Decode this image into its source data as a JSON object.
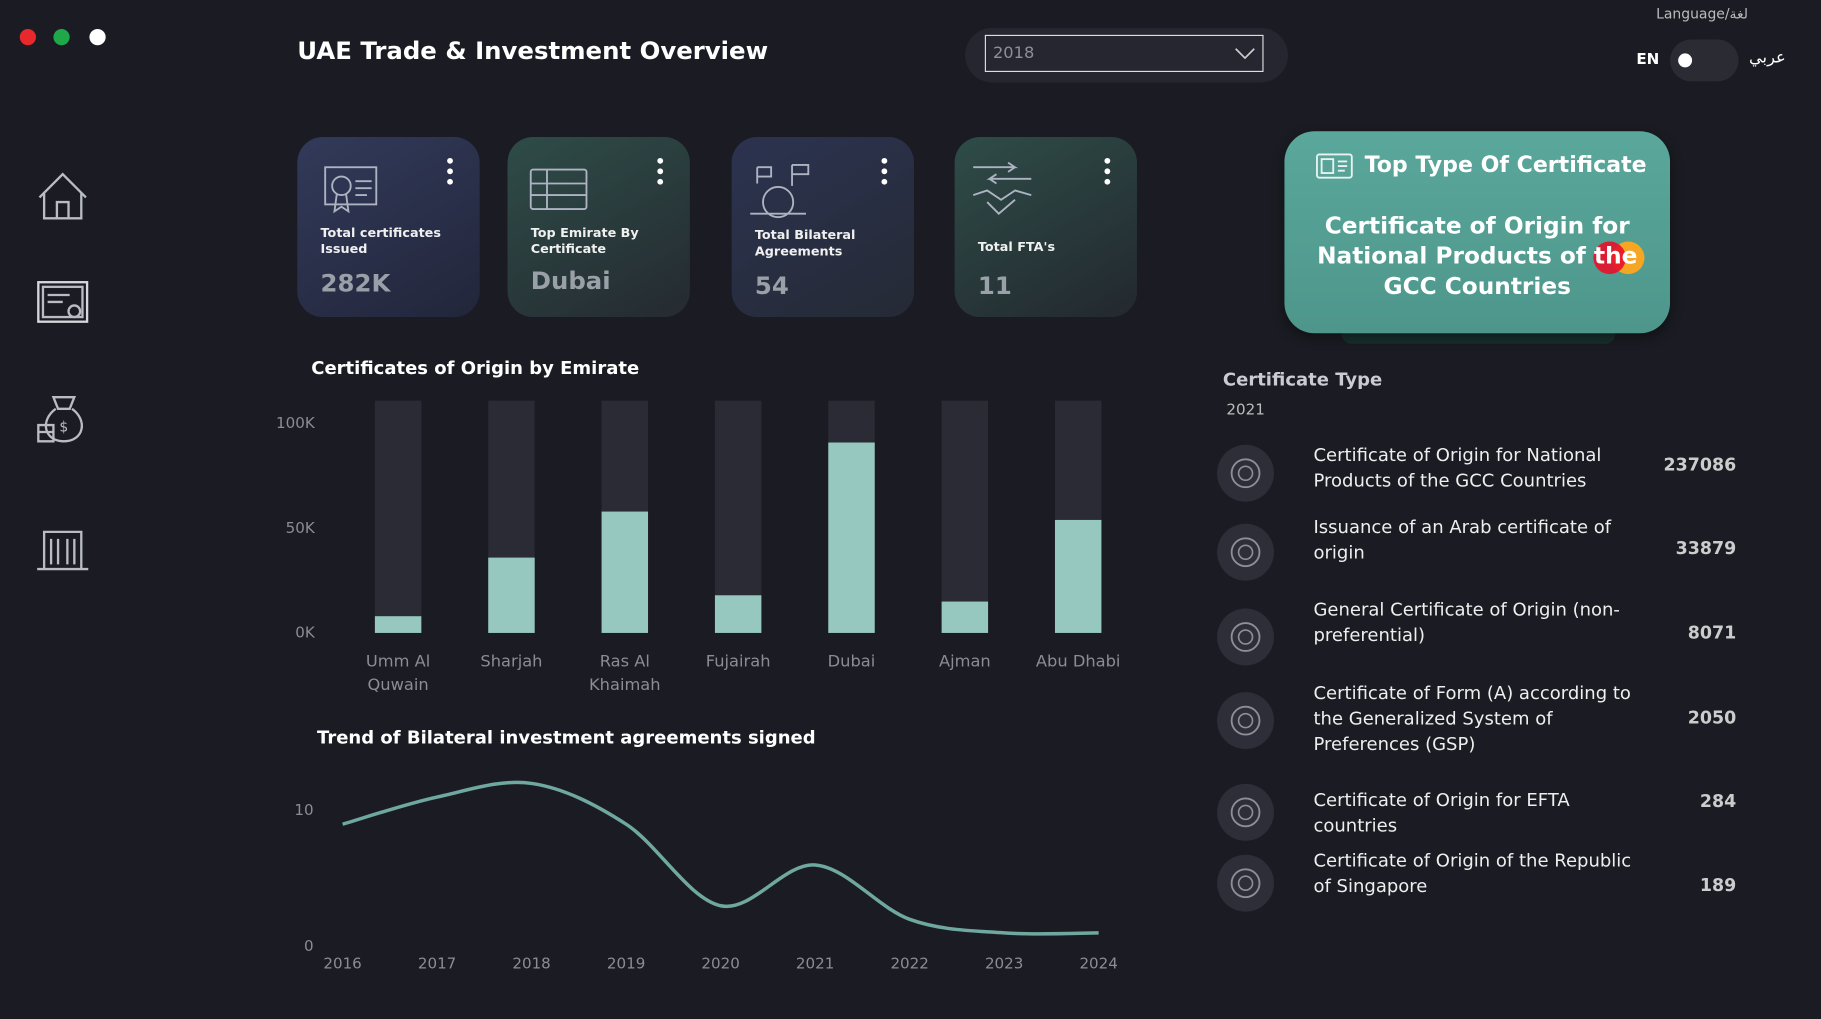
{
  "header": {
    "title": "UAE Trade & Investment Overview",
    "year": "2018",
    "language_label": "Language/لغة",
    "lang_en": "EN",
    "lang_ar": "عربي"
  },
  "kpis": [
    {
      "label": "Total certificates Issued",
      "value": "282K"
    },
    {
      "label": "Top Emirate By Certificate",
      "value": "Dubai"
    },
    {
      "label": "Total Bilateral Agreements",
      "value": "54"
    },
    {
      "label": "Total FTA's",
      "value": "11"
    }
  ],
  "top_type": {
    "title": "Top Type Of Certificate",
    "value": "Certificate of Origin for National Products of the GCC Countries"
  },
  "chart_data": [
    {
      "type": "bar",
      "title": "Certificates of Origin by Emirate",
      "categories": [
        "Umm Al Quwain",
        "Sharjah",
        "Ras Al Khaimah",
        "Fujairah",
        "Dubai",
        "Ajman",
        "Abu Dhabi"
      ],
      "values": [
        8000,
        36000,
        58000,
        18000,
        91000,
        15000,
        54000
      ],
      "color": "#96c8c0",
      "ylim": [
        0,
        111000
      ],
      "yticks": [
        {
          "value": 0,
          "label": "0K"
        },
        {
          "value": 50000,
          "label": "50K"
        },
        {
          "value": 100000,
          "label": "100K"
        }
      ]
    },
    {
      "type": "line",
      "title": "Trend of Bilateral investment agreements signed",
      "x": [
        2016,
        2017,
        2018,
        2019,
        2020,
        2021,
        2022,
        2023,
        2024
      ],
      "values": [
        9,
        11,
        12,
        9,
        3,
        6,
        2,
        1,
        1
      ],
      "color": "#6fa8a0",
      "xlim": [
        2016,
        2024
      ],
      "xticks": [
        2016,
        2017,
        2018,
        2019,
        2020,
        2021,
        2022,
        2023,
        2024
      ],
      "ylim": [
        0,
        12.5
      ],
      "yticks": [
        0,
        10
      ]
    }
  ],
  "certificate_types": {
    "title": "Certificate Type",
    "year": "2021",
    "items": [
      {
        "name": "Certificate of Origin for National Products of the GCC Countries",
        "value": 237086
      },
      {
        "name": "Issuance of an Arab certificate of origin",
        "value": 33879
      },
      {
        "name": "General Certificate of Origin (non-preferential)",
        "value": 8071
      },
      {
        "name": "Certificate of Form (A) according to the Generalized System of Preferences (GSP)",
        "value": 2050
      },
      {
        "name": "Certificate of Origin for EFTA countries",
        "value": 284
      },
      {
        "name": "Certificate of Origin of the Republic of Singapore",
        "value": 189
      }
    ]
  }
}
